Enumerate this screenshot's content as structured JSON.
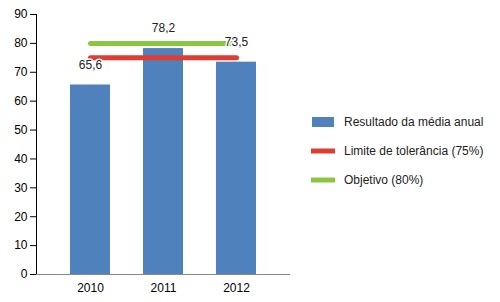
{
  "chart_data": {
    "type": "bar",
    "categories": [
      "2010",
      "2011",
      "2012"
    ],
    "series": [
      {
        "name": "Resultado da média anual",
        "type": "bar",
        "color": "#4f81bd",
        "values": [
          65.6,
          78.2,
          73.5
        ],
        "value_labels": [
          "65,6",
          "78,2",
          "73,5"
        ]
      },
      {
        "name": "Limite de tolerância (75%)",
        "type": "line",
        "color": "#e03c31",
        "values": [
          75,
          75,
          75
        ]
      },
      {
        "name": "Objetivo (80%)",
        "type": "line",
        "color": "#8cc63e",
        "values": [
          80,
          80,
          80
        ]
      }
    ],
    "ylim": [
      0,
      90
    ],
    "yticks": [
      0,
      10,
      20,
      30,
      40,
      50,
      60,
      70,
      80,
      90
    ],
    "grid": false,
    "data_labels": true,
    "legend": "right"
  }
}
